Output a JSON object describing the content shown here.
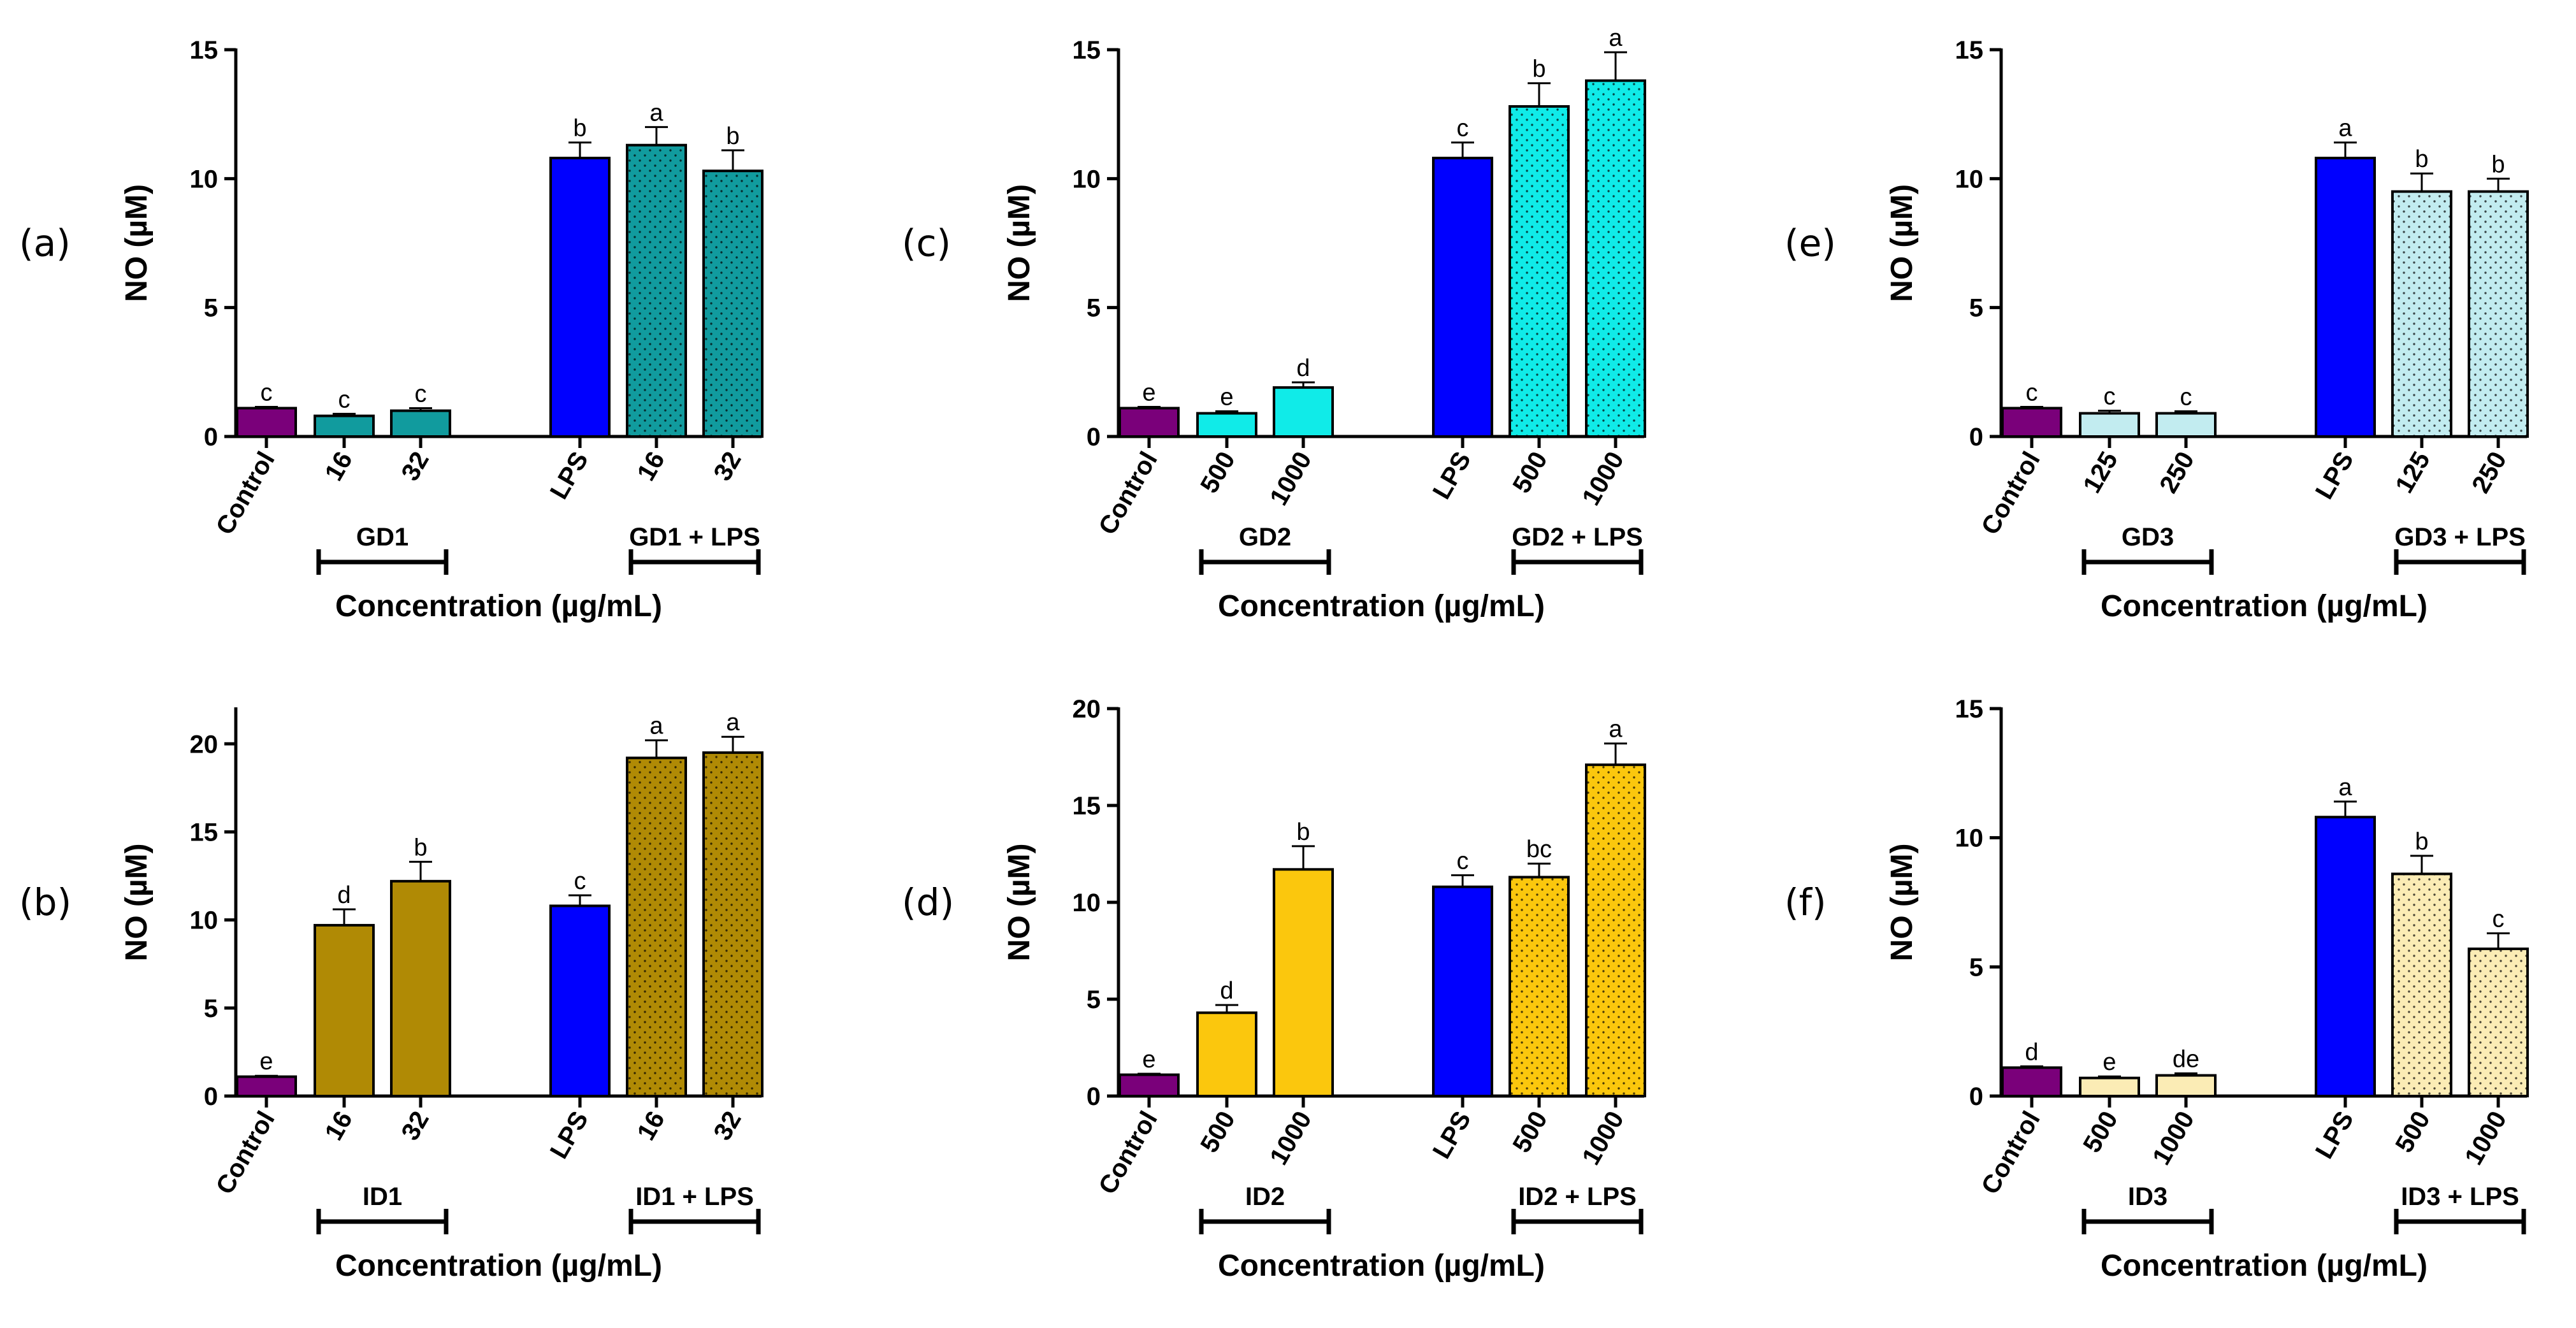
{
  "figure": {
    "colors": {
      "control": "#7a007a",
      "lps": "#0000ff"
    }
  },
  "chart_data": [
    {
      "type": "bar",
      "panel": "(a)",
      "ylabel": "NO (µM)",
      "xlabel": "Concentration (µg/mL)",
      "ylim": [
        0,
        15
      ],
      "yticks": [
        0,
        5,
        10,
        15
      ],
      "categories": [
        "Control",
        "16",
        "32",
        "LPS",
        "16",
        "32"
      ],
      "values": [
        1.1,
        0.8,
        1.0,
        10.8,
        11.3,
        10.3
      ],
      "errors": [
        0.05,
        0.08,
        0.1,
        0.6,
        0.7,
        0.8
      ],
      "letters": [
        "c",
        "c",
        "c",
        "b",
        "a",
        "b"
      ],
      "fills": [
        "control",
        "solid",
        "solid",
        "lps",
        "dots",
        "dots"
      ],
      "color": "#119b9e",
      "groups": [
        {
          "label": "GD1",
          "from": 1,
          "to": 2
        },
        {
          "label": "GD1 + LPS",
          "from": 4,
          "to": 5
        }
      ]
    },
    {
      "type": "bar",
      "panel": "(c)",
      "ylabel": "NO (µM)",
      "xlabel": "Concentration (µg/mL)",
      "ylim": [
        0,
        15
      ],
      "yticks": [
        0,
        5,
        10,
        15
      ],
      "categories": [
        "Control",
        "500",
        "1000",
        "LPS",
        "500",
        "1000"
      ],
      "values": [
        1.1,
        0.9,
        1.9,
        10.8,
        12.8,
        13.8
      ],
      "errors": [
        0.05,
        0.08,
        0.2,
        0.6,
        0.9,
        1.1
      ],
      "letters": [
        "e",
        "e",
        "d",
        "c",
        "b",
        "a"
      ],
      "fills": [
        "control",
        "solid",
        "solid",
        "lps",
        "dots",
        "dots"
      ],
      "color": "#10ebe8",
      "groups": [
        {
          "label": "GD2",
          "from": 1,
          "to": 2
        },
        {
          "label": "GD2 + LPS",
          "from": 4,
          "to": 5
        }
      ]
    },
    {
      "type": "bar",
      "panel": "(e)",
      "ylabel": "NO (µM)",
      "xlabel": "Concentration (µg/mL)",
      "ylim": [
        0,
        15
      ],
      "yticks": [
        0,
        5,
        10,
        15
      ],
      "categories": [
        "Control",
        "125",
        "250",
        "LPS",
        "125",
        "250"
      ],
      "values": [
        1.1,
        0.9,
        0.9,
        10.8,
        9.5,
        9.5
      ],
      "errors": [
        0.05,
        0.1,
        0.08,
        0.6,
        0.7,
        0.5
      ],
      "letters": [
        "c",
        "c",
        "c",
        "a",
        "b",
        "b"
      ],
      "fills": [
        "control",
        "solid",
        "solid",
        "lps",
        "dots",
        "dots"
      ],
      "color": "#c2ecf0",
      "groups": [
        {
          "label": "GD3",
          "from": 1,
          "to": 2
        },
        {
          "label": "GD3 + LPS",
          "from": 4,
          "to": 5
        }
      ]
    },
    {
      "type": "bar",
      "panel": "(b)",
      "ylabel": "NO (µM)",
      "xlabel": "Concentration (µg/mL)",
      "ylim": [
        0,
        22
      ],
      "yticks": [
        0,
        5,
        10,
        15,
        20
      ],
      "categories": [
        "Control",
        "16",
        "32",
        "LPS",
        "16",
        "32"
      ],
      "values": [
        1.1,
        9.7,
        12.2,
        10.8,
        19.2,
        19.5
      ],
      "errors": [
        0.05,
        0.9,
        1.1,
        0.6,
        1.0,
        0.9
      ],
      "letters": [
        "e",
        "d",
        "b",
        "c",
        "a",
        "a"
      ],
      "fills": [
        "control",
        "solid",
        "solid",
        "lps",
        "dots",
        "dots"
      ],
      "color": "#b08a05",
      "groups": [
        {
          "label": "ID1",
          "from": 1,
          "to": 2
        },
        {
          "label": "ID1 + LPS",
          "from": 4,
          "to": 5
        }
      ]
    },
    {
      "type": "bar",
      "panel": "(d)",
      "ylabel": "NO (µM)",
      "xlabel": "Concentration (µg/mL)",
      "ylim": [
        0,
        20
      ],
      "yticks": [
        0,
        5,
        10,
        15,
        20
      ],
      "categories": [
        "Control",
        "500",
        "1000",
        "LPS",
        "500",
        "1000"
      ],
      "values": [
        1.1,
        4.3,
        11.7,
        10.8,
        11.3,
        17.1
      ],
      "errors": [
        0.05,
        0.4,
        1.2,
        0.6,
        0.7,
        1.1
      ],
      "letters": [
        "e",
        "d",
        "b",
        "c",
        "bc",
        "a"
      ],
      "fills": [
        "control",
        "solid",
        "solid",
        "lps",
        "dots",
        "dots"
      ],
      "color": "#fbc70d",
      "groups": [
        {
          "label": "ID2",
          "from": 1,
          "to": 2
        },
        {
          "label": "ID2 + LPS",
          "from": 4,
          "to": 5
        }
      ]
    },
    {
      "type": "bar",
      "panel": "(f)",
      "ylabel": "NO (µM)",
      "xlabel": "Concentration (µg/mL)",
      "ylim": [
        0,
        15
      ],
      "yticks": [
        0,
        5,
        10,
        15
      ],
      "categories": [
        "Control",
        "500",
        "1000",
        "LPS",
        "500",
        "1000"
      ],
      "values": [
        1.1,
        0.7,
        0.8,
        10.8,
        8.6,
        5.7
      ],
      "errors": [
        0.05,
        0.06,
        0.08,
        0.6,
        0.7,
        0.6
      ],
      "letters": [
        "d",
        "e",
        "de",
        "a",
        "b",
        "c"
      ],
      "fills": [
        "control",
        "solid",
        "solid",
        "lps",
        "dots",
        "dots"
      ],
      "color": "#fbecb5",
      "groups": [
        {
          "label": "ID3",
          "from": 1,
          "to": 2
        },
        {
          "label": "ID3 + LPS",
          "from": 4,
          "to": 5
        }
      ]
    }
  ]
}
